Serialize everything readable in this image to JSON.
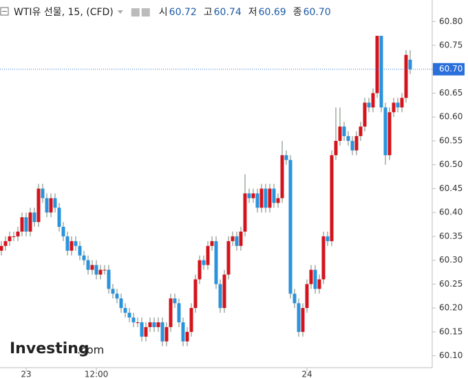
{
  "chart_data": {
    "type": "candlestick",
    "title": "WTI유 선물, 15, (CFD)",
    "ohlc_header": [
      {
        "label": "시",
        "value": "60.72"
      },
      {
        "label": "고",
        "value": "60.74"
      },
      {
        "label": "저",
        "value": "60.69"
      },
      {
        "label": "종",
        "value": "60.70"
      }
    ],
    "watermark": [
      "Investing",
      ".com"
    ],
    "up_color": "#d4141c",
    "down_color": "#2a93dc",
    "wick_color": "#6f806f",
    "categories": [
      null,
      null,
      null,
      null,
      null,
      null,
      "23",
      null,
      null,
      null,
      null,
      null,
      null,
      null,
      null,
      null,
      null,
      null,
      null,
      null,
      null,
      null,
      null,
      "12:00",
      null,
      null,
      null,
      null,
      null,
      null,
      null,
      null,
      null,
      null,
      null,
      null,
      null,
      null,
      null,
      null,
      null,
      null,
      null,
      null,
      null,
      null,
      null,
      null,
      null,
      null,
      null,
      null,
      null,
      null,
      null,
      null,
      null,
      null,
      null,
      null,
      null,
      null,
      null,
      null,
      null,
      null,
      null,
      null,
      null,
      null,
      null,
      null,
      null,
      null,
      "24",
      null,
      null,
      null,
      null,
      null,
      null,
      null,
      null,
      null,
      null,
      null,
      null,
      null,
      null,
      null,
      null,
      null,
      null,
      null,
      null,
      null,
      null,
      null,
      null,
      null
    ],
    "open": [
      60.32,
      60.33,
      60.34,
      60.35,
      60.35,
      60.36,
      60.39,
      60.36,
      60.4,
      60.38,
      60.45,
      60.43,
      60.4,
      60.43,
      60.41,
      60.37,
      60.35,
      60.32,
      60.34,
      60.33,
      60.31,
      60.3,
      60.28,
      60.29,
      60.27,
      60.28,
      60.28,
      60.24,
      60.23,
      60.22,
      60.2,
      60.19,
      60.18,
      60.17,
      60.17,
      60.14,
      60.16,
      60.17,
      60.16,
      60.17,
      60.13,
      60.16,
      60.22,
      60.21,
      60.17,
      60.13,
      60.15,
      60.2,
      60.26,
      60.3,
      60.29,
      60.33,
      60.34,
      60.25,
      60.2,
      60.27,
      60.34,
      60.35,
      60.33,
      60.36,
      60.44,
      60.43,
      60.44,
      60.41,
      60.45,
      60.41,
      60.45,
      60.42,
      60.43,
      60.52,
      60.51,
      60.23,
      60.21,
      60.15,
      60.2,
      60.25,
      60.28,
      60.24,
      60.26,
      60.35,
      60.34,
      60.52,
      60.55,
      60.58,
      60.56,
      60.55,
      60.53,
      60.56,
      60.58,
      60.63,
      60.62,
      60.65,
      60.77,
      60.62,
      60.52,
      60.61,
      60.63,
      60.62,
      60.64,
      60.72
    ],
    "high": [
      60.34,
      60.35,
      60.36,
      60.36,
      60.37,
      60.4,
      60.4,
      60.41,
      60.41,
      60.46,
      60.46,
      60.44,
      60.44,
      60.44,
      60.42,
      60.38,
      60.36,
      60.35,
      60.35,
      60.34,
      60.32,
      60.31,
      60.3,
      60.3,
      60.29,
      60.29,
      60.29,
      60.25,
      60.24,
      60.23,
      60.21,
      60.2,
      60.19,
      60.18,
      60.18,
      60.17,
      60.18,
      60.18,
      60.18,
      60.18,
      60.17,
      60.23,
      60.23,
      60.22,
      60.18,
      60.16,
      60.21,
      60.27,
      60.31,
      60.31,
      60.34,
      60.35,
      60.35,
      60.26,
      60.28,
      60.35,
      60.36,
      60.36,
      60.37,
      60.48,
      60.45,
      60.45,
      60.45,
      60.46,
      60.46,
      60.46,
      60.46,
      60.44,
      60.55,
      60.53,
      60.52,
      60.24,
      60.22,
      60.21,
      60.26,
      60.29,
      60.29,
      60.27,
      60.36,
      60.36,
      60.53,
      60.62,
      60.62,
      60.59,
      60.57,
      60.56,
      60.57,
      60.59,
      60.64,
      60.64,
      60.66,
      60.77,
      60.77,
      60.63,
      60.62,
      60.64,
      60.64,
      60.65,
      60.74,
      60.74
    ],
    "low": [
      60.31,
      60.32,
      60.33,
      60.34,
      60.34,
      60.35,
      60.35,
      60.35,
      60.37,
      60.37,
      60.42,
      60.39,
      60.39,
      60.4,
      60.36,
      60.34,
      60.31,
      60.31,
      60.32,
      60.3,
      60.29,
      60.27,
      60.27,
      60.26,
      60.26,
      60.27,
      60.23,
      60.22,
      60.21,
      60.19,
      60.18,
      60.17,
      60.16,
      60.16,
      60.13,
      60.13,
      60.15,
      60.15,
      60.15,
      60.12,
      60.12,
      60.15,
      60.2,
      60.16,
      60.12,
      60.12,
      60.14,
      60.19,
      60.25,
      60.28,
      60.28,
      60.32,
      60.24,
      60.19,
      60.19,
      60.26,
      60.33,
      60.32,
      60.32,
      60.35,
      60.42,
      60.42,
      60.4,
      60.4,
      60.4,
      60.4,
      60.41,
      60.41,
      60.42,
      60.5,
      60.22,
      60.2,
      60.14,
      60.14,
      60.19,
      60.24,
      60.23,
      60.23,
      60.25,
      60.33,
      60.33,
      60.51,
      60.54,
      60.55,
      60.54,
      60.52,
      60.52,
      60.55,
      60.57,
      60.61,
      60.61,
      60.64,
      60.61,
      60.5,
      60.51,
      60.6,
      60.61,
      60.61,
      60.63,
      60.69
    ],
    "close": [
      60.33,
      60.34,
      60.35,
      60.35,
      60.36,
      60.39,
      60.36,
      60.4,
      60.38,
      60.45,
      60.43,
      60.4,
      60.43,
      60.41,
      60.37,
      60.35,
      60.32,
      60.34,
      60.33,
      60.31,
      60.3,
      60.28,
      60.29,
      60.27,
      60.28,
      60.28,
      60.24,
      60.23,
      60.22,
      60.2,
      60.19,
      60.18,
      60.17,
      60.17,
      60.14,
      60.16,
      60.17,
      60.16,
      60.17,
      60.13,
      60.16,
      60.22,
      60.21,
      60.17,
      60.13,
      60.15,
      60.2,
      60.26,
      60.3,
      60.29,
      60.33,
      60.34,
      60.25,
      60.2,
      60.27,
      60.34,
      60.35,
      60.33,
      60.36,
      60.44,
      60.43,
      60.44,
      60.41,
      60.45,
      60.41,
      60.45,
      60.42,
      60.43,
      60.52,
      60.51,
      60.23,
      60.21,
      60.15,
      60.2,
      60.25,
      60.28,
      60.24,
      60.26,
      60.35,
      60.34,
      60.52,
      60.55,
      60.58,
      60.56,
      60.55,
      60.53,
      60.56,
      60.58,
      60.63,
      60.62,
      60.65,
      60.77,
      60.62,
      60.52,
      60.61,
      60.63,
      60.62,
      60.64,
      60.73,
      60.7
    ],
    "last_price": {
      "value": 60.7,
      "label": "60.70"
    },
    "ylim": [
      60.075,
      60.845
    ],
    "yticks": [
      {
        "value": 60.1,
        "label": "60.10"
      },
      {
        "value": 60.15,
        "label": "60.15"
      },
      {
        "value": 60.2,
        "label": "60.20"
      },
      {
        "value": 60.25,
        "label": "60.25"
      },
      {
        "value": 60.3,
        "label": "60.30"
      },
      {
        "value": 60.35,
        "label": "60.35"
      },
      {
        "value": 60.4,
        "label": "60.40"
      },
      {
        "value": 60.45,
        "label": "60.45"
      },
      {
        "value": 60.5,
        "label": "60.50"
      },
      {
        "value": 60.55,
        "label": "60.55"
      },
      {
        "value": 60.6,
        "label": "60.60"
      },
      {
        "value": 60.65,
        "label": "60.65"
      },
      {
        "value": 60.7,
        "label": "60.70"
      },
      {
        "value": 60.75,
        "label": "60.75"
      },
      {
        "value": 60.8,
        "label": "60.80"
      }
    ]
  }
}
